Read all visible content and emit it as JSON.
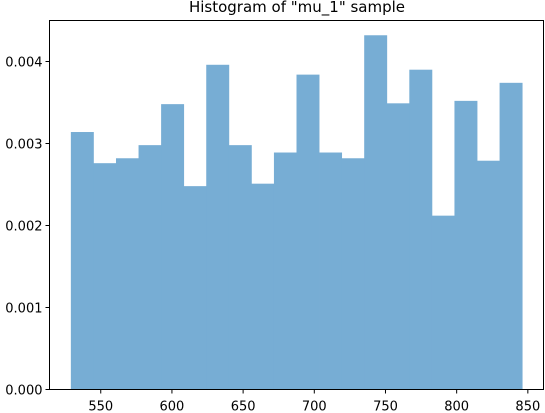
{
  "chart_data": {
    "type": "bar",
    "title": "Histogram of \"mu_1\" sample",
    "xlabel": "",
    "ylabel": "",
    "bar_color": "#77add4",
    "bin_edges": [
      529.0,
      544.85,
      560.7,
      576.55,
      592.4,
      608.25,
      624.1,
      639.95,
      655.8,
      671.65,
      687.5,
      703.35,
      719.2,
      735.05,
      750.9,
      766.75,
      782.6,
      798.45,
      814.3,
      830.15,
      846.0
    ],
    "values": [
      0.00314,
      0.00276,
      0.00282,
      0.00298,
      0.00348,
      0.00248,
      0.00396,
      0.00298,
      0.00251,
      0.00289,
      0.00384,
      0.00289,
      0.00282,
      0.00432,
      0.00349,
      0.0039,
      0.00212,
      0.00352,
      0.00279,
      0.00374
    ],
    "xlim": [
      514.0,
      861.0
    ],
    "ylim": [
      0.0,
      0.0045
    ],
    "x_ticks": [
      550,
      600,
      650,
      700,
      750,
      800,
      850
    ],
    "y_ticks": [
      0.0,
      0.001,
      0.002,
      0.003,
      0.004
    ],
    "x_tick_labels": [
      "550",
      "600",
      "650",
      "700",
      "750",
      "800",
      "850"
    ],
    "y_tick_labels": [
      "0.000",
      "0.001",
      "0.002",
      "0.003",
      "0.004"
    ],
    "grid": false
  }
}
